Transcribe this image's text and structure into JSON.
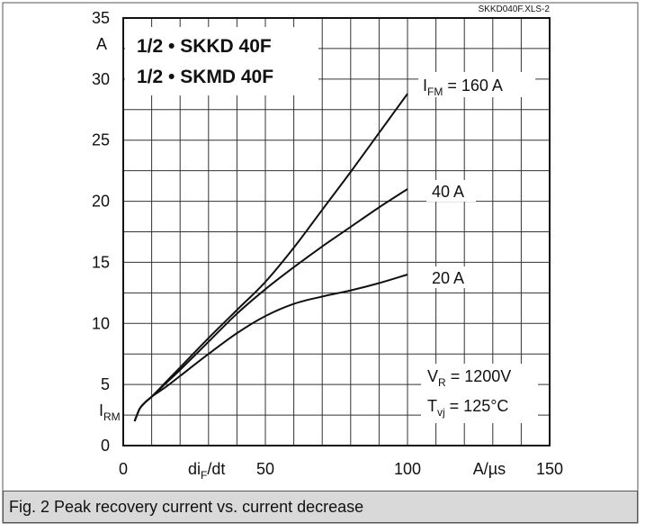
{
  "source_file": "SKKD040F.XLS-2",
  "device_labels": [
    "1/2 • SKKD 40F",
    "1/2 • SKMD 40F"
  ],
  "conditions": {
    "vr": {
      "sym": "V",
      "sub": "R",
      "text": " = 1200V"
    },
    "tvj": {
      "sym": "T",
      "sub": "vj",
      "text": " = 125°C"
    }
  },
  "caption": "Fig. 2 Peak recovery current vs. current decrease",
  "chart_data": {
    "type": "line",
    "title": "",
    "x_ticks": [
      "0",
      "50",
      "100",
      "150"
    ],
    "y_ticks": [
      "0",
      "5",
      "10",
      "15",
      "20",
      "25",
      "30",
      "35"
    ],
    "xlabel": {
      "main": "di",
      "sub": "F",
      "tail": "/dt",
      "unit": "A/µs"
    },
    "ylabel": {
      "main": "I",
      "sub": "RM",
      "unit": "A"
    },
    "xlim": [
      0,
      150
    ],
    "ylim": [
      0,
      35
    ],
    "grid": true,
    "series": [
      {
        "name": "I_FM = 160 A",
        "label": {
          "main": "I",
          "sub": "FM",
          "text": " = 160 A"
        },
        "x": [
          4,
          5,
          6,
          8,
          10,
          15,
          20,
          30,
          40,
          50,
          60,
          70,
          80,
          90,
          100
        ],
        "y": [
          2.0,
          2.6,
          3.1,
          3.6,
          4.0,
          5.2,
          6.4,
          8.8,
          11.1,
          13.4,
          16.2,
          19.3,
          22.4,
          25.6,
          28.8
        ]
      },
      {
        "name": "40 A",
        "label": {
          "main": "40 A",
          "sub": "",
          "text": ""
        },
        "x": [
          4,
          5,
          6,
          8,
          10,
          15,
          20,
          30,
          40,
          50,
          60,
          70,
          80,
          90,
          100
        ],
        "y": [
          2.0,
          2.6,
          3.1,
          3.6,
          4.0,
          5.1,
          6.2,
          8.5,
          10.8,
          12.8,
          14.6,
          16.3,
          17.9,
          19.5,
          21.0
        ]
      },
      {
        "name": "20 A",
        "label": {
          "main": "20 A",
          "sub": "",
          "text": ""
        },
        "x": [
          4,
          5,
          6,
          8,
          10,
          15,
          20,
          30,
          40,
          50,
          60,
          70,
          80,
          90,
          100
        ],
        "y": [
          2.0,
          2.6,
          3.1,
          3.6,
          4.0,
          4.8,
          5.7,
          7.5,
          9.2,
          10.6,
          11.6,
          12.2,
          12.7,
          13.3,
          14.0
        ]
      }
    ]
  }
}
